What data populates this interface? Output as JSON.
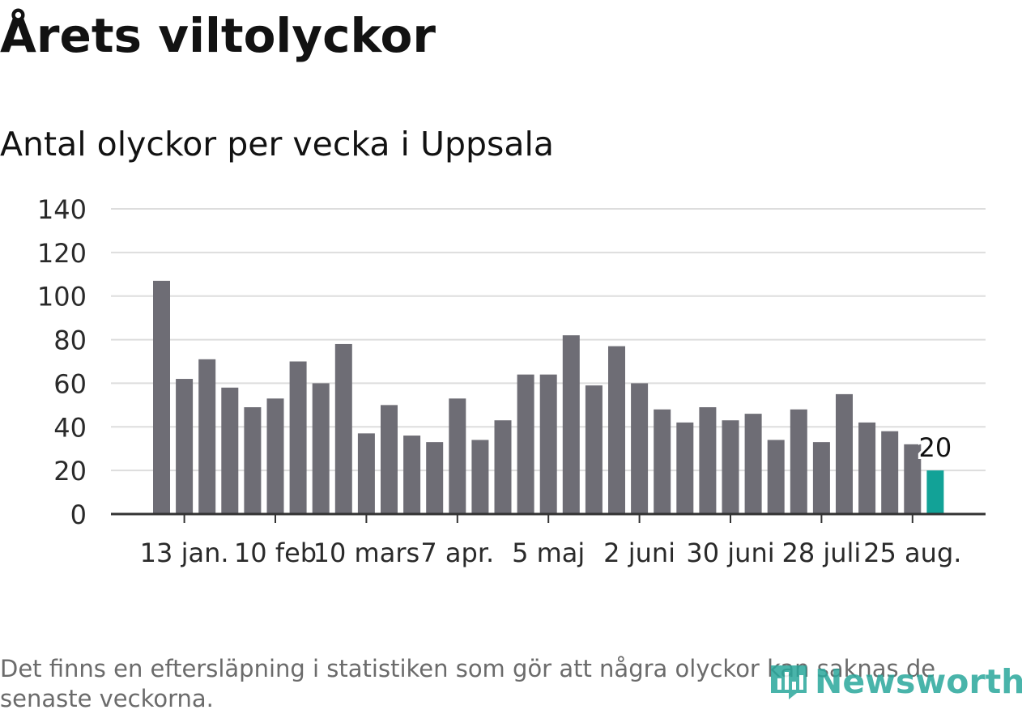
{
  "header": {
    "title": "Årets viltolyckor",
    "subtitle": "Antal olyckor per vecka i Uppsala"
  },
  "footer": {
    "note": "Det finns en eftersläpning i statistiken som gör att några olyckor kan saknas de senaste veckorna.",
    "brand": "Newsworthy",
    "brand_icon": "bar-chart-logo-icon"
  },
  "colors": {
    "bar": "#6e6d75",
    "highlight": "#12a297",
    "grid": "#dddddd",
    "axis": "#333333",
    "text": "#2a2a2a",
    "brand": "#2aa79c"
  },
  "chart_data": {
    "type": "bar",
    "title": "Antal olyckor per vecka i Uppsala",
    "xlabel": "",
    "ylabel": "",
    "ylim": [
      0,
      140
    ],
    "yticks": [
      0,
      20,
      40,
      60,
      80,
      100,
      120,
      140
    ],
    "grid": true,
    "x_tick_labels": [
      {
        "index": 1,
        "label": "13 jan."
      },
      {
        "index": 5,
        "label": "10 feb"
      },
      {
        "index": 9,
        "label": "10 mars"
      },
      {
        "index": 13,
        "label": "7 apr."
      },
      {
        "index": 17,
        "label": "5 maj"
      },
      {
        "index": 21,
        "label": "2 juni"
      },
      {
        "index": 25,
        "label": "30 juni"
      },
      {
        "index": 29,
        "label": "28 juli"
      },
      {
        "index": 33,
        "label": "25 aug."
      }
    ],
    "values": [
      107,
      62,
      71,
      58,
      49,
      53,
      70,
      60,
      78,
      37,
      50,
      36,
      33,
      53,
      34,
      43,
      64,
      64,
      82,
      59,
      77,
      60,
      48,
      42,
      49,
      43,
      46,
      34,
      48,
      33,
      55,
      42,
      38,
      32,
      20
    ],
    "highlight_index": 34,
    "highlight_label": "20"
  }
}
